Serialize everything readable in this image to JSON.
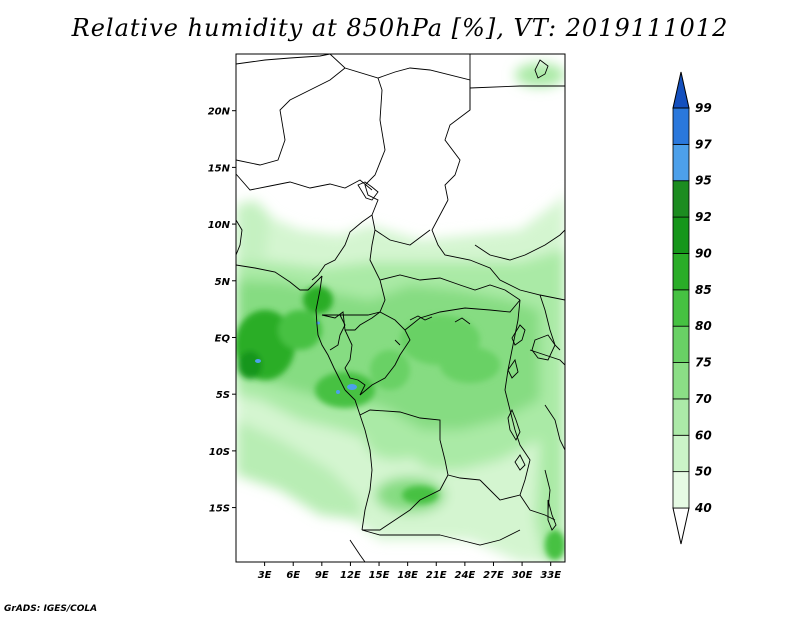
{
  "title": "Relative humidity at 850hPa [%], VT: 2019111012",
  "footer": "GrADS: IGES/COLA",
  "map": {
    "lat_ticks": [
      "20N",
      "15N",
      "10N",
      "5N",
      "EQ",
      "5S",
      "10S",
      "15S"
    ],
    "lat_values": [
      20,
      15,
      10,
      5,
      0,
      -5,
      -10,
      -15
    ],
    "lon_ticks": [
      "3E",
      "6E",
      "9E",
      "12E",
      "15E",
      "18E",
      "21E",
      "24E",
      "27E",
      "30E",
      "33E"
    ],
    "lon_values": [
      3,
      6,
      9,
      12,
      15,
      18,
      21,
      24,
      27,
      30,
      33
    ],
    "extent": {
      "lon": [
        0,
        34.5
      ],
      "lat": [
        -19.8,
        25
      ]
    }
  },
  "colorbar": {
    "levels": [
      "40",
      "50",
      "60",
      "70",
      "75",
      "80",
      "85",
      "90",
      "92",
      "95",
      "97",
      "99"
    ],
    "colors": [
      "#ffffff",
      "#e6fae4",
      "#cbf3c8",
      "#ace9a8",
      "#8bde86",
      "#69d165",
      "#46c142",
      "#2aad28",
      "#16961a",
      "#1c8c20",
      "#4da0ea",
      "#2a78dc",
      "#1450be"
    ]
  }
}
